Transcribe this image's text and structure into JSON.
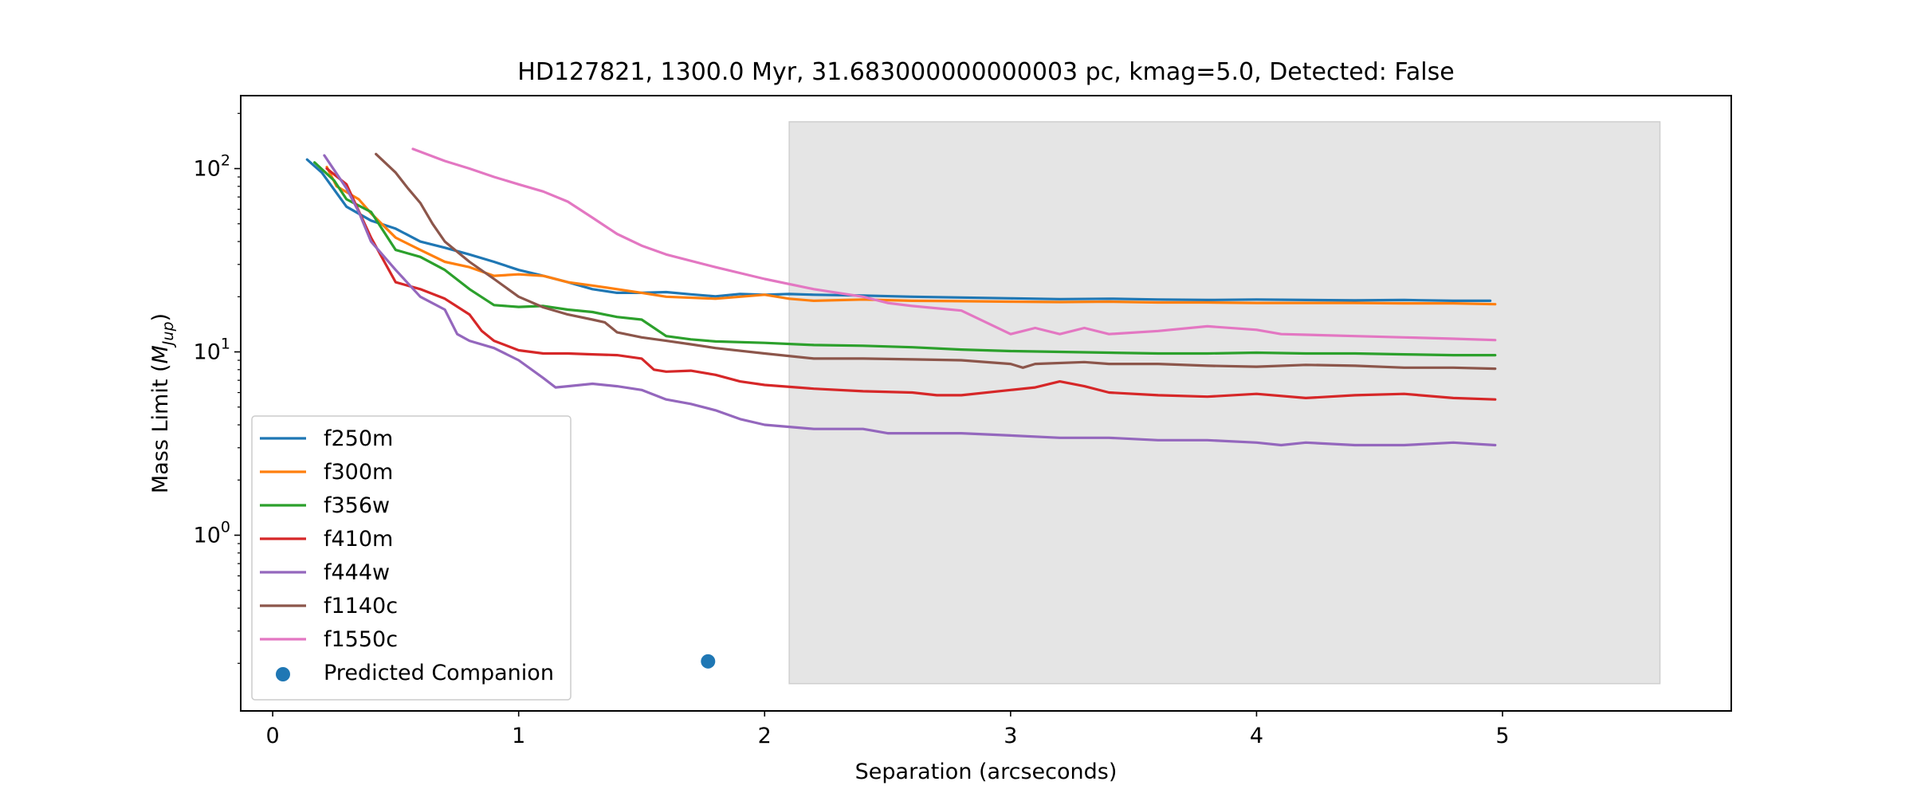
{
  "chart_data": {
    "type": "line",
    "title": "HD127821, 1300.0 Myr, 31.683000000000003 pc, kmag=5.0, Detected: False",
    "xlabel": "Separation (arcseconds)",
    "ylabel_main": "Mass Limit (",
    "ylabel_symbol": "M",
    "ylabel_sub": "Jup",
    "ylabel_close": ")",
    "x_scale": "linear",
    "y_scale": "log",
    "xlim": [
      -0.13,
      5.93
    ],
    "ylim": [
      0.11,
      250
    ],
    "x_ticks": [
      0,
      1,
      2,
      3,
      4,
      5
    ],
    "x_tick_labels": [
      "0",
      "1",
      "2",
      "3",
      "4",
      "5"
    ],
    "y_ticks": [
      1,
      10,
      100
    ],
    "y_tick_labels": [
      {
        "base": "10",
        "exp": "0"
      },
      {
        "base": "10",
        "exp": "1"
      },
      {
        "base": "10",
        "exp": "2"
      }
    ],
    "grid": false,
    "legend_position": "lower-left",
    "shaded_region": {
      "x": [
        2.1,
        5.64
      ],
      "y": [
        0.155,
        180
      ],
      "color": "#e5e5e5"
    },
    "series": [
      {
        "name": "f250m",
        "color": "#1f77b4",
        "points": [
          [
            0.14,
            112
          ],
          [
            0.2,
            95
          ],
          [
            0.3,
            62
          ],
          [
            0.4,
            52
          ],
          [
            0.5,
            47
          ],
          [
            0.6,
            40
          ],
          [
            0.7,
            37
          ],
          [
            0.8,
            34
          ],
          [
            0.9,
            31
          ],
          [
            1.0,
            28
          ],
          [
            1.1,
            26
          ],
          [
            1.2,
            24
          ],
          [
            1.3,
            22
          ],
          [
            1.4,
            21
          ],
          [
            1.5,
            21
          ],
          [
            1.6,
            21.2
          ],
          [
            1.7,
            20.6
          ],
          [
            1.8,
            20.1
          ],
          [
            1.9,
            20.7
          ],
          [
            2.0,
            20.5
          ],
          [
            2.1,
            20.7
          ],
          [
            2.2,
            20.5
          ],
          [
            2.4,
            20.3
          ],
          [
            2.6,
            20.0
          ],
          [
            2.8,
            19.8
          ],
          [
            3.0,
            19.6
          ],
          [
            3.2,
            19.4
          ],
          [
            3.4,
            19.5
          ],
          [
            3.6,
            19.3
          ],
          [
            3.8,
            19.2
          ],
          [
            4.0,
            19.3
          ],
          [
            4.2,
            19.2
          ],
          [
            4.4,
            19.1
          ],
          [
            4.6,
            19.2
          ],
          [
            4.8,
            19.0
          ],
          [
            4.95,
            19.0
          ]
        ]
      },
      {
        "name": "f300m",
        "color": "#ff7f0e",
        "points": [
          [
            0.22,
            102
          ],
          [
            0.26,
            80
          ],
          [
            0.35,
            68
          ],
          [
            0.4,
            57
          ],
          [
            0.5,
            42
          ],
          [
            0.6,
            36
          ],
          [
            0.7,
            31
          ],
          [
            0.8,
            29
          ],
          [
            0.9,
            26
          ],
          [
            1.0,
            26.5
          ],
          [
            1.1,
            26
          ],
          [
            1.2,
            24
          ],
          [
            1.3,
            23
          ],
          [
            1.4,
            22
          ],
          [
            1.5,
            21
          ],
          [
            1.6,
            20
          ],
          [
            1.8,
            19.5
          ],
          [
            2.0,
            20.5
          ],
          [
            2.1,
            19.5
          ],
          [
            2.2,
            19.0
          ],
          [
            2.4,
            19.3
          ],
          [
            2.6,
            19.0
          ],
          [
            2.8,
            18.9
          ],
          [
            3.0,
            18.8
          ],
          [
            3.2,
            18.7
          ],
          [
            3.4,
            18.8
          ],
          [
            3.6,
            18.6
          ],
          [
            3.8,
            18.6
          ],
          [
            4.0,
            18.5
          ],
          [
            4.2,
            18.5
          ],
          [
            4.4,
            18.5
          ],
          [
            4.6,
            18.4
          ],
          [
            4.8,
            18.4
          ],
          [
            4.97,
            18.2
          ]
        ]
      },
      {
        "name": "f356w",
        "color": "#2ca02c",
        "points": [
          [
            0.17,
            108
          ],
          [
            0.25,
            86
          ],
          [
            0.3,
            68
          ],
          [
            0.4,
            58
          ],
          [
            0.5,
            36
          ],
          [
            0.6,
            33
          ],
          [
            0.7,
            28
          ],
          [
            0.8,
            22
          ],
          [
            0.9,
            18
          ],
          [
            1.0,
            17.6
          ],
          [
            1.1,
            17.8
          ],
          [
            1.2,
            17.0
          ],
          [
            1.3,
            16.5
          ],
          [
            1.4,
            15.5
          ],
          [
            1.5,
            15.0
          ],
          [
            1.6,
            12.2
          ],
          [
            1.7,
            11.7
          ],
          [
            1.8,
            11.4
          ],
          [
            2.0,
            11.2
          ],
          [
            2.2,
            10.9
          ],
          [
            2.4,
            10.8
          ],
          [
            2.6,
            10.6
          ],
          [
            2.8,
            10.3
          ],
          [
            3.0,
            10.1
          ],
          [
            3.2,
            10.0
          ],
          [
            3.4,
            9.9
          ],
          [
            3.6,
            9.8
          ],
          [
            3.8,
            9.8
          ],
          [
            4.0,
            9.9
          ],
          [
            4.2,
            9.8
          ],
          [
            4.4,
            9.8
          ],
          [
            4.6,
            9.7
          ],
          [
            4.8,
            9.6
          ],
          [
            4.97,
            9.6
          ]
        ]
      },
      {
        "name": "f410m",
        "color": "#d62728",
        "points": [
          [
            0.22,
            100
          ],
          [
            0.3,
            82
          ],
          [
            0.4,
            42
          ],
          [
            0.5,
            24
          ],
          [
            0.6,
            22
          ],
          [
            0.7,
            19.5
          ],
          [
            0.8,
            16
          ],
          [
            0.85,
            13
          ],
          [
            0.9,
            11.5
          ],
          [
            1.0,
            10.2
          ],
          [
            1.1,
            9.8
          ],
          [
            1.2,
            9.8
          ],
          [
            1.3,
            9.7
          ],
          [
            1.4,
            9.6
          ],
          [
            1.5,
            9.2
          ],
          [
            1.55,
            8.0
          ],
          [
            1.6,
            7.8
          ],
          [
            1.7,
            7.9
          ],
          [
            1.8,
            7.5
          ],
          [
            1.9,
            6.9
          ],
          [
            2.0,
            6.6
          ],
          [
            2.2,
            6.3
          ],
          [
            2.4,
            6.1
          ],
          [
            2.6,
            6.0
          ],
          [
            2.7,
            5.8
          ],
          [
            2.8,
            5.8
          ],
          [
            3.0,
            6.2
          ],
          [
            3.1,
            6.4
          ],
          [
            3.2,
            6.9
          ],
          [
            3.3,
            6.5
          ],
          [
            3.4,
            6.0
          ],
          [
            3.6,
            5.8
          ],
          [
            3.8,
            5.7
          ],
          [
            4.0,
            5.9
          ],
          [
            4.2,
            5.6
          ],
          [
            4.4,
            5.8
          ],
          [
            4.6,
            5.9
          ],
          [
            4.8,
            5.6
          ],
          [
            4.97,
            5.5
          ]
        ]
      },
      {
        "name": "f444w",
        "color": "#9467bd",
        "points": [
          [
            0.21,
            118
          ],
          [
            0.3,
            78
          ],
          [
            0.35,
            58
          ],
          [
            0.4,
            40
          ],
          [
            0.5,
            28
          ],
          [
            0.6,
            20
          ],
          [
            0.7,
            17
          ],
          [
            0.75,
            12.5
          ],
          [
            0.8,
            11.5
          ],
          [
            0.9,
            10.5
          ],
          [
            1.0,
            9.0
          ],
          [
            1.1,
            7.2
          ],
          [
            1.15,
            6.4
          ],
          [
            1.2,
            6.5
          ],
          [
            1.3,
            6.7
          ],
          [
            1.4,
            6.5
          ],
          [
            1.5,
            6.2
          ],
          [
            1.6,
            5.5
          ],
          [
            1.7,
            5.2
          ],
          [
            1.8,
            4.8
          ],
          [
            1.9,
            4.3
          ],
          [
            2.0,
            4.0
          ],
          [
            2.2,
            3.8
          ],
          [
            2.4,
            3.8
          ],
          [
            2.5,
            3.6
          ],
          [
            2.6,
            3.6
          ],
          [
            2.8,
            3.6
          ],
          [
            3.0,
            3.5
          ],
          [
            3.2,
            3.4
          ],
          [
            3.4,
            3.4
          ],
          [
            3.6,
            3.3
          ],
          [
            3.8,
            3.3
          ],
          [
            4.0,
            3.2
          ],
          [
            4.1,
            3.1
          ],
          [
            4.2,
            3.2
          ],
          [
            4.4,
            3.1
          ],
          [
            4.6,
            3.1
          ],
          [
            4.8,
            3.2
          ],
          [
            4.97,
            3.1
          ]
        ]
      },
      {
        "name": "f1140c",
        "color": "#8c564b",
        "points": [
          [
            0.42,
            120
          ],
          [
            0.5,
            95
          ],
          [
            0.55,
            78
          ],
          [
            0.6,
            65
          ],
          [
            0.65,
            50
          ],
          [
            0.7,
            40
          ],
          [
            0.8,
            31
          ],
          [
            0.9,
            25
          ],
          [
            1.0,
            20
          ],
          [
            1.1,
            17.5
          ],
          [
            1.2,
            16
          ],
          [
            1.3,
            15
          ],
          [
            1.35,
            14.5
          ],
          [
            1.4,
            12.8
          ],
          [
            1.5,
            12.0
          ],
          [
            1.6,
            11.5
          ],
          [
            1.7,
            11.0
          ],
          [
            1.8,
            10.5
          ],
          [
            2.0,
            9.8
          ],
          [
            2.2,
            9.2
          ],
          [
            2.4,
            9.2
          ],
          [
            2.6,
            9.1
          ],
          [
            2.8,
            9.0
          ],
          [
            3.0,
            8.6
          ],
          [
            3.05,
            8.2
          ],
          [
            3.1,
            8.6
          ],
          [
            3.3,
            8.8
          ],
          [
            3.4,
            8.6
          ],
          [
            3.6,
            8.6
          ],
          [
            3.8,
            8.4
          ],
          [
            4.0,
            8.3
          ],
          [
            4.2,
            8.5
          ],
          [
            4.4,
            8.4
          ],
          [
            4.6,
            8.2
          ],
          [
            4.8,
            8.2
          ],
          [
            4.97,
            8.1
          ]
        ]
      },
      {
        "name": "f1550c",
        "color": "#e377c2",
        "points": [
          [
            0.57,
            128
          ],
          [
            0.7,
            110
          ],
          [
            0.8,
            100
          ],
          [
            0.9,
            90
          ],
          [
            1.0,
            82
          ],
          [
            1.1,
            75
          ],
          [
            1.2,
            66
          ],
          [
            1.3,
            54
          ],
          [
            1.4,
            44
          ],
          [
            1.5,
            38
          ],
          [
            1.6,
            34
          ],
          [
            1.8,
            29
          ],
          [
            2.0,
            25
          ],
          [
            2.2,
            22
          ],
          [
            2.4,
            20
          ],
          [
            2.5,
            18.5
          ],
          [
            2.6,
            17.8
          ],
          [
            2.8,
            16.8
          ],
          [
            2.9,
            14.5
          ],
          [
            3.0,
            12.5
          ],
          [
            3.1,
            13.5
          ],
          [
            3.2,
            12.5
          ],
          [
            3.3,
            13.5
          ],
          [
            3.4,
            12.5
          ],
          [
            3.6,
            13.0
          ],
          [
            3.8,
            13.8
          ],
          [
            4.0,
            13.2
          ],
          [
            4.1,
            12.5
          ],
          [
            4.2,
            12.4
          ],
          [
            4.4,
            12.2
          ],
          [
            4.6,
            12.0
          ],
          [
            4.8,
            11.8
          ],
          [
            4.97,
            11.6
          ]
        ]
      }
    ],
    "companions": [
      {
        "name": "Predicted Companion",
        "color": "#1f77b4",
        "points": [
          [
            1.77,
            0.205
          ]
        ]
      }
    ]
  }
}
